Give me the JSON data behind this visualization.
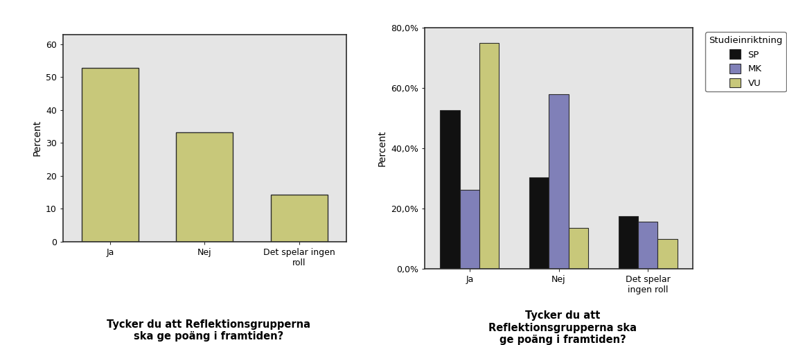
{
  "chart1": {
    "categories": [
      "Ja",
      "Nej",
      "Det spelar ingen\nroll"
    ],
    "values": [
      52.8,
      33.3,
      14.3
    ],
    "bar_color": "#c8c87a",
    "bar_edgecolor": "#2b2b2b",
    "ylabel": "Percent",
    "ylim": [
      0,
      63
    ],
    "yticks": [
      0,
      10,
      20,
      30,
      40,
      50,
      60
    ],
    "xlabel": "Tycker du att Reflektionsgrupperna\nska ge poäng i framtiden?",
    "bg_color": "#e5e5e5"
  },
  "chart2": {
    "categories": [
      "Ja",
      "Nej",
      "Det spelar\ningen roll"
    ],
    "series": {
      "SP": [
        52.6,
        30.3,
        17.6
      ],
      "MK": [
        26.3,
        57.9,
        15.8
      ],
      "VU": [
        75.0,
        13.6,
        10.0
      ]
    },
    "colors": {
      "SP": "#111111",
      "MK": "#8080b8",
      "VU": "#c8c87a"
    },
    "bar_edgecolor": "#2b2b2b",
    "ylabel": "Percent",
    "ylim": [
      0,
      80
    ],
    "ytick_labels": [
      "0,0%",
      "20,0%",
      "40,0%",
      "60,0%",
      "80,0%"
    ],
    "ytick_values": [
      0,
      20,
      40,
      60,
      80
    ],
    "xlabel": "Tycker du att\nReflektionsgrupperna ska\nge poäng i framtiden?",
    "legend_title": "Studieinriktning",
    "bg_color": "#e5e5e5"
  },
  "figure_bg": "#ffffff"
}
